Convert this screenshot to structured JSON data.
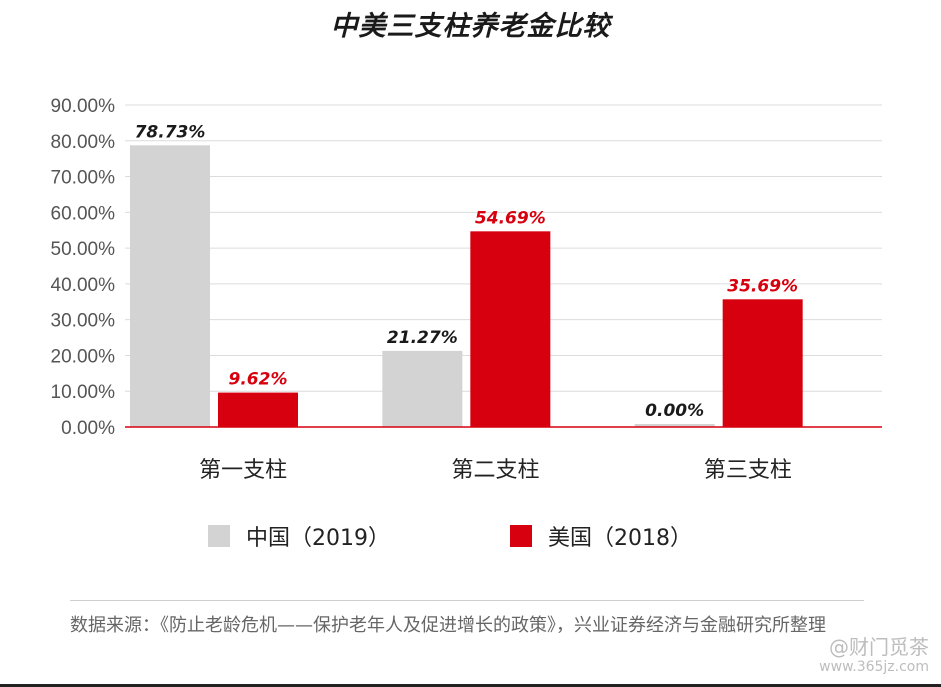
{
  "chart_data": {
    "type": "bar",
    "title": "中美三支柱养老金比较",
    "categories": [
      "第一支柱",
      "第二支柱",
      "第三支柱"
    ],
    "series": [
      {
        "name": "中国（2019）",
        "color": "#d3d3d3",
        "label_color": "#1a1a1a",
        "values": [
          78.73,
          21.27,
          0.0
        ],
        "labels": [
          "78.73%",
          "21.27%",
          "0.00%"
        ]
      },
      {
        "name": "美国（2018）",
        "color": "#d7000f",
        "label_color": "#d7000f",
        "values": [
          9.62,
          54.69,
          35.69
        ],
        "labels": [
          "9.62%",
          "54.69%",
          "35.69%"
        ]
      }
    ],
    "yticks": [
      "0.00%",
      "10.00%",
      "20.00%",
      "30.00%",
      "40.00%",
      "50.00%",
      "60.00%",
      "70.00%",
      "80.00%",
      "90.00%"
    ],
    "ylim": [
      0,
      90
    ],
    "grid": true,
    "legend_position": "bottom"
  },
  "source": "数据来源：《防止老龄危机——保护老年人及促进增长的政策》，兴业证券经济与金融研究所整理",
  "watermark": {
    "text": "@财门觅茶",
    "url": "www.365jz.com"
  }
}
